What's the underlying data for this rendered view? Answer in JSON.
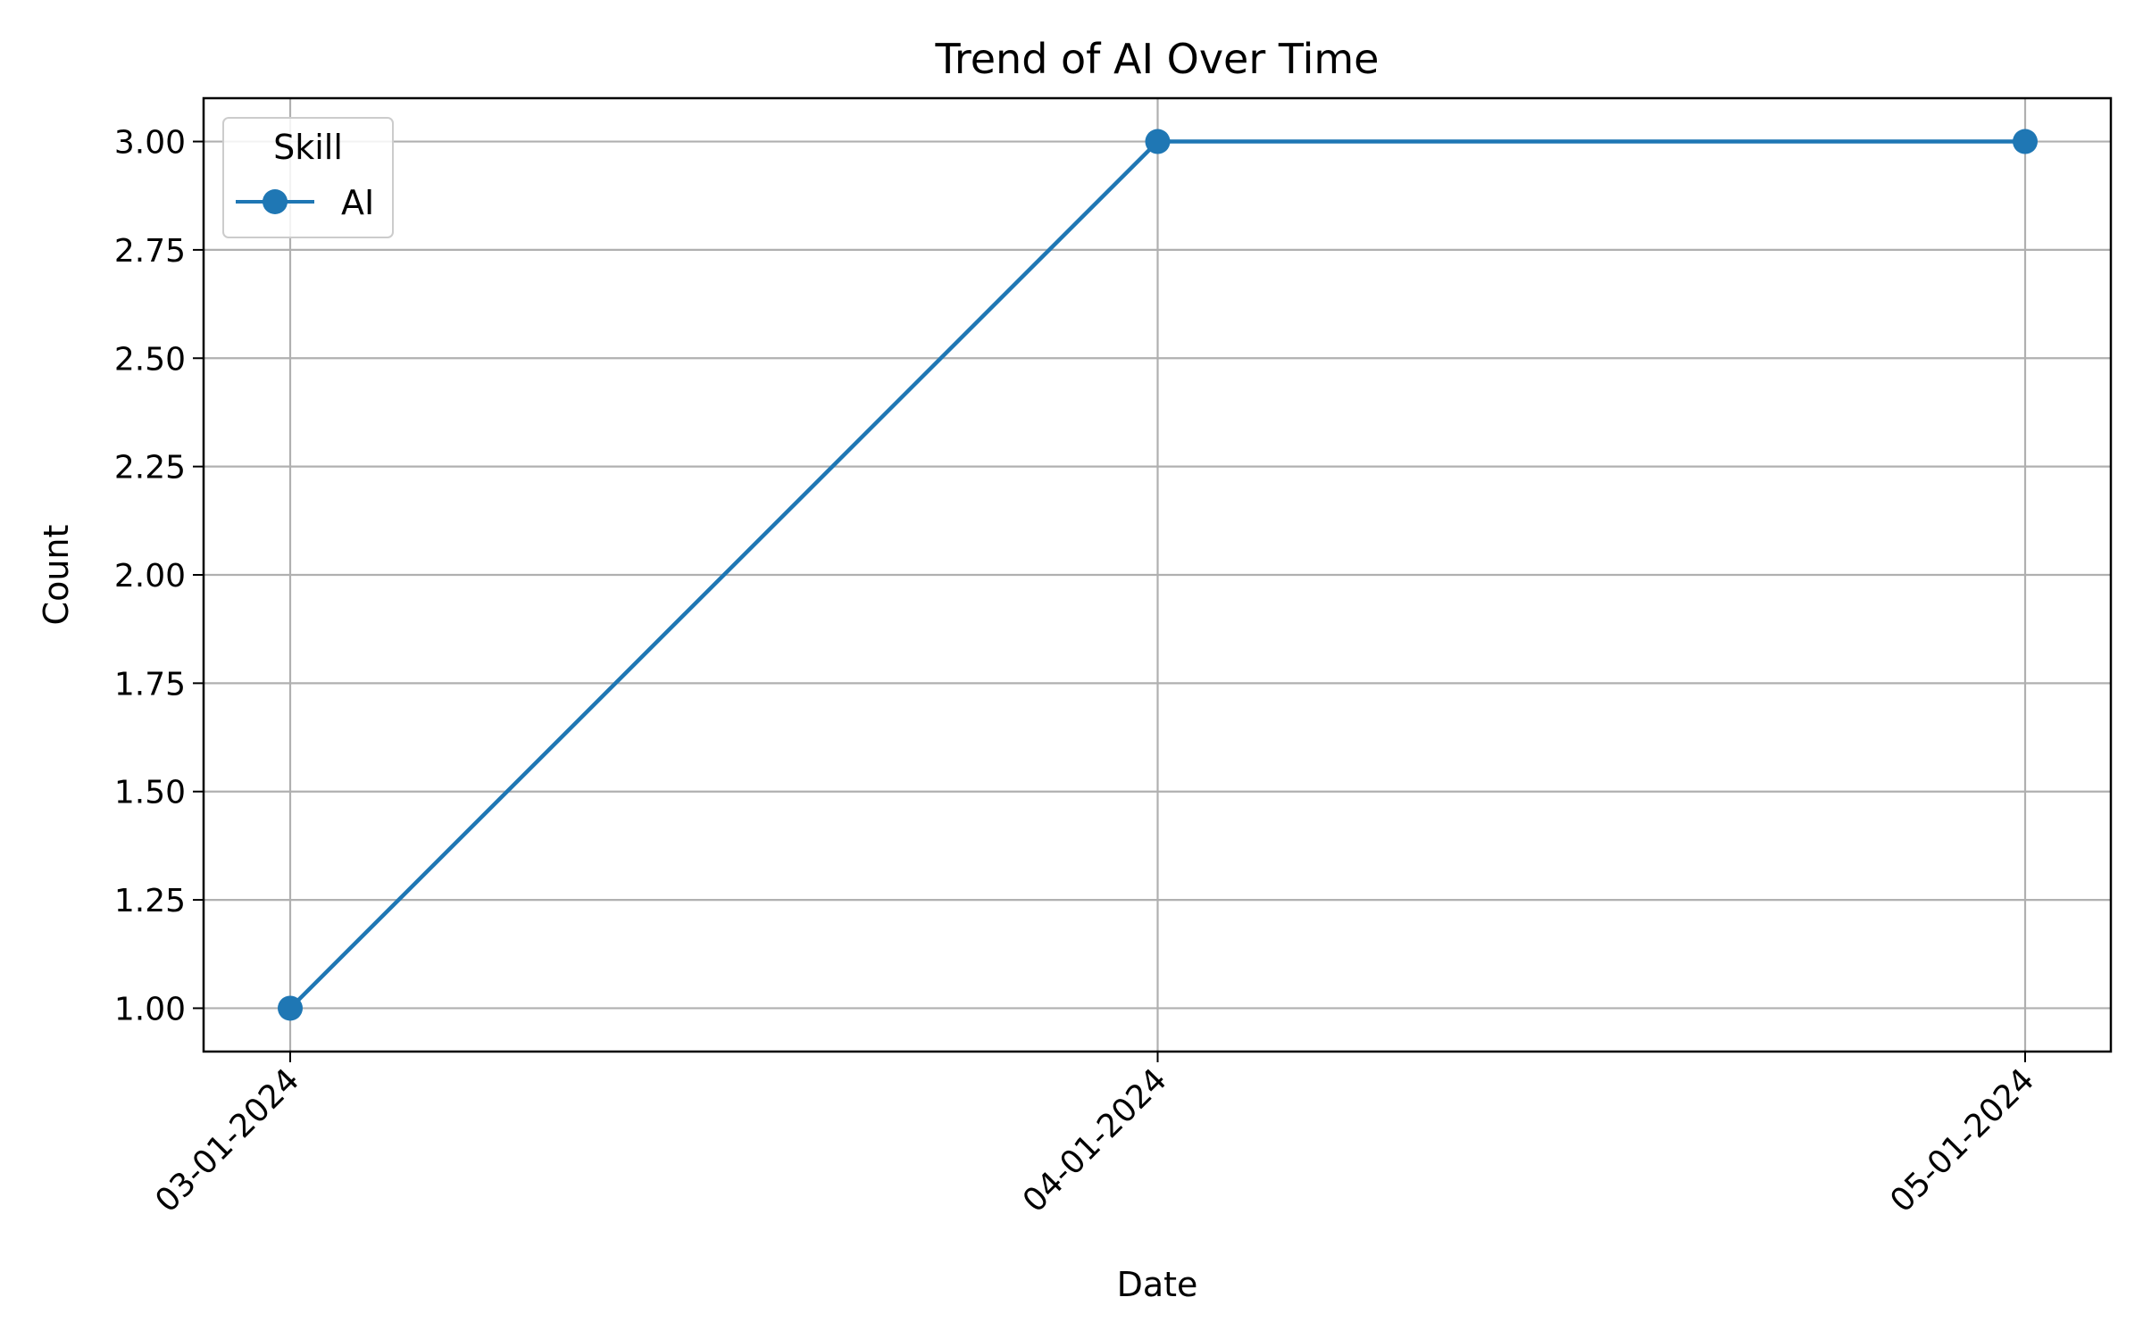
{
  "chart_data": {
    "type": "line",
    "title": "Trend of AI Over Time",
    "xlabel": "Date",
    "ylabel": "Count",
    "x": [
      "03-01-2024",
      "04-01-2024",
      "05-01-2024"
    ],
    "ylim": [
      0.9,
      3.1
    ],
    "yticks": [
      "1.00",
      "1.25",
      "1.50",
      "1.75",
      "2.00",
      "2.25",
      "2.50",
      "2.75",
      "3.00"
    ],
    "grid": true,
    "legend": {
      "title": "Skill",
      "placement": "top-left"
    },
    "series": [
      {
        "name": "AI",
        "values": [
          1,
          3,
          3
        ],
        "color": "#1f77b4",
        "marker": "circle"
      }
    ]
  }
}
